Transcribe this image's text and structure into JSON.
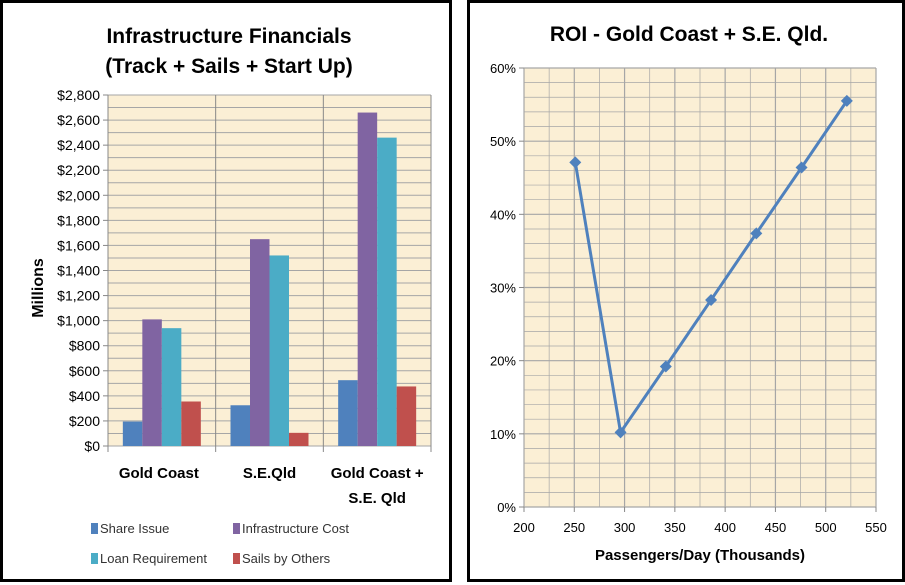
{
  "chart_data": [
    {
      "type": "bar",
      "title": "Infrastructure Financials",
      "subtitle": "(Track + Sails + Start Up)",
      "xlabel": "",
      "ylabel": "Millions",
      "ylim": [
        0,
        2800
      ],
      "ytick_labels": [
        "$0",
        "$200",
        "$400",
        "$600",
        "$800",
        "$1,000",
        "$1,200",
        "$1,400",
        "$1,600",
        "$1,800",
        "$2,000",
        "$2,200",
        "$2,400",
        "$2,600",
        "$2,800"
      ],
      "categories": [
        [
          "Gold Coast"
        ],
        [
          "S.E.Qld"
        ],
        [
          "Gold Coast +",
          "S.E. Qld"
        ]
      ],
      "grid": true,
      "legend_position": "bottom",
      "series": [
        {
          "name": "Share Issue",
          "color": "#4f81bd",
          "values": [
            195,
            325,
            525
          ]
        },
        {
          "name": "Infrastructure Cost",
          "color": "#8064a2",
          "values": [
            1010,
            1650,
            2660
          ]
        },
        {
          "name": "Loan Requirement",
          "color": "#4bacc6",
          "values": [
            940,
            1520,
            2460
          ]
        },
        {
          "name": "Sails by Others",
          "color": "#c0504d",
          "values": [
            355,
            105,
            475
          ]
        }
      ]
    },
    {
      "type": "line",
      "title": "ROI - Gold Coast + S.E. Qld.",
      "xlabel": "Passengers/Day (Thousands)",
      "ylabel": "",
      "xlim": [
        200,
        550
      ],
      "ylim": [
        0,
        60
      ],
      "xtick_labels": [
        "200",
        "250",
        "300",
        "350",
        "400",
        "450",
        "500",
        "550"
      ],
      "ytick_labels": [
        "0%",
        "10%",
        "20%",
        "30%",
        "40%",
        "50%",
        "60%"
      ],
      "grid": true,
      "series": [
        {
          "color": "#4f81bd",
          "marker": "diamond",
          "x": [
            251,
            296,
            341,
            386,
            431,
            476,
            521
          ],
          "y": [
            47.1,
            10.2,
            19.2,
            28.3,
            37.4,
            46.4,
            55.5
          ]
        }
      ]
    }
  ],
  "colors": {
    "plot_background": "#fbefd5",
    "grid": "#a6a6a6"
  }
}
